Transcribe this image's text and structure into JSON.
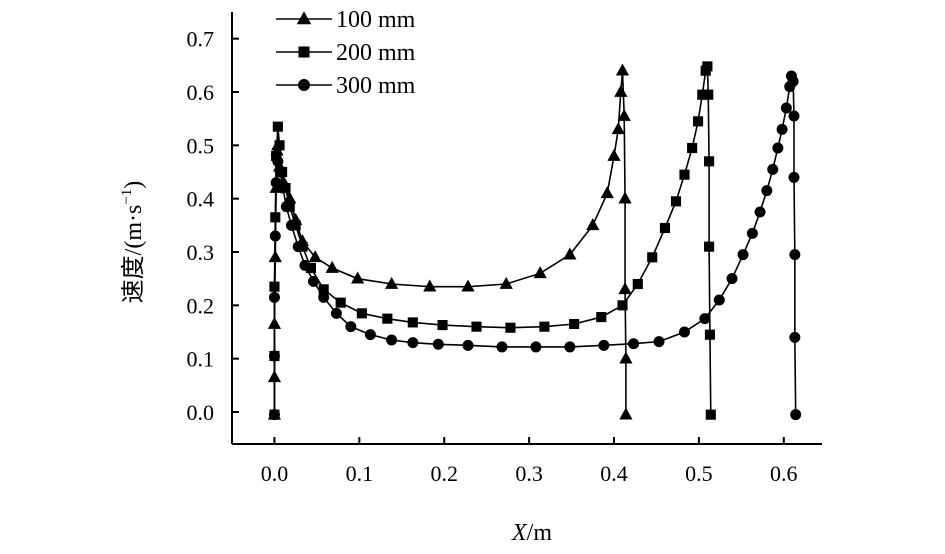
{
  "chart_data": {
    "type": "line",
    "title": "",
    "xlabel": "X/m",
    "xlabel_italic_part": "X",
    "xlabel_rest": "/m",
    "ylabel": "速度/(m·s⁻¹)",
    "ylabel_main": "速度/(m·s",
    "ylabel_sup": "−1",
    "ylabel_close": ")",
    "xlim": [
      -0.05,
      0.645
    ],
    "ylim": [
      -0.06,
      0.75
    ],
    "x_ticks": [
      0.0,
      0.1,
      0.2,
      0.3,
      0.4,
      0.5,
      0.6
    ],
    "x_tick_labels": [
      "0.0",
      "0.1",
      "0.2",
      "0.3",
      "0.4",
      "0.5",
      "0.6"
    ],
    "y_ticks": [
      0.0,
      0.1,
      0.2,
      0.3,
      0.4,
      0.5,
      0.6,
      0.7
    ],
    "y_tick_labels": [
      "0.0",
      "0.1",
      "0.2",
      "0.3",
      "0.4",
      "0.5",
      "0.6",
      "0.7"
    ],
    "grid": false,
    "legend_position": "top-left",
    "series": [
      {
        "name": "100 mm",
        "marker": "triangle",
        "color": "#000000",
        "points": [
          [
            0.0,
            -0.005
          ],
          [
            0.0,
            0.065
          ],
          [
            0.0,
            0.165
          ],
          [
            0.001,
            0.29
          ],
          [
            0.002,
            0.42
          ],
          [
            0.003,
            0.49
          ],
          [
            0.004,
            0.5
          ],
          [
            0.006,
            0.46
          ],
          [
            0.011,
            0.43
          ],
          [
            0.018,
            0.4
          ],
          [
            0.025,
            0.36
          ],
          [
            0.033,
            0.32
          ],
          [
            0.048,
            0.29
          ],
          [
            0.068,
            0.27
          ],
          [
            0.098,
            0.25
          ],
          [
            0.138,
            0.24
          ],
          [
            0.183,
            0.235
          ],
          [
            0.228,
            0.235
          ],
          [
            0.273,
            0.24
          ],
          [
            0.313,
            0.26
          ],
          [
            0.348,
            0.295
          ],
          [
            0.375,
            0.35
          ],
          [
            0.392,
            0.41
          ],
          [
            0.4,
            0.48
          ],
          [
            0.405,
            0.53
          ],
          [
            0.408,
            0.6
          ],
          [
            0.41,
            0.64
          ],
          [
            0.412,
            0.555
          ],
          [
            0.413,
            0.4
          ],
          [
            0.413,
            0.23
          ],
          [
            0.414,
            0.1
          ],
          [
            0.414,
            -0.005
          ]
        ]
      },
      {
        "name": "200 mm",
        "marker": "square",
        "color": "#000000",
        "points": [
          [
            0.0,
            -0.005
          ],
          [
            0.0,
            0.105
          ],
          [
            0.0,
            0.235
          ],
          [
            0.001,
            0.365
          ],
          [
            0.002,
            0.48
          ],
          [
            0.004,
            0.535
          ],
          [
            0.006,
            0.5
          ],
          [
            0.009,
            0.45
          ],
          [
            0.013,
            0.42
          ],
          [
            0.018,
            0.385
          ],
          [
            0.025,
            0.35
          ],
          [
            0.033,
            0.31
          ],
          [
            0.043,
            0.27
          ],
          [
            0.058,
            0.23
          ],
          [
            0.078,
            0.205
          ],
          [
            0.103,
            0.185
          ],
          [
            0.133,
            0.175
          ],
          [
            0.163,
            0.168
          ],
          [
            0.198,
            0.163
          ],
          [
            0.238,
            0.16
          ],
          [
            0.278,
            0.158
          ],
          [
            0.318,
            0.16
          ],
          [
            0.353,
            0.165
          ],
          [
            0.385,
            0.178
          ],
          [
            0.41,
            0.2
          ],
          [
            0.428,
            0.24
          ],
          [
            0.445,
            0.29
          ],
          [
            0.46,
            0.345
          ],
          [
            0.473,
            0.395
          ],
          [
            0.483,
            0.445
          ],
          [
            0.492,
            0.495
          ],
          [
            0.499,
            0.545
          ],
          [
            0.504,
            0.595
          ],
          [
            0.508,
            0.64
          ],
          [
            0.51,
            0.648
          ],
          [
            0.511,
            0.595
          ],
          [
            0.512,
            0.47
          ],
          [
            0.512,
            0.31
          ],
          [
            0.513,
            0.145
          ],
          [
            0.514,
            -0.005
          ]
        ]
      },
      {
        "name": "300 mm",
        "marker": "circle",
        "color": "#000000",
        "points": [
          [
            0.0,
            -0.005
          ],
          [
            0.0,
            0.105
          ],
          [
            0.0,
            0.215
          ],
          [
            0.001,
            0.33
          ],
          [
            0.002,
            0.43
          ],
          [
            0.004,
            0.47
          ],
          [
            0.007,
            0.45
          ],
          [
            0.01,
            0.42
          ],
          [
            0.014,
            0.385
          ],
          [
            0.02,
            0.35
          ],
          [
            0.028,
            0.31
          ],
          [
            0.036,
            0.275
          ],
          [
            0.046,
            0.245
          ],
          [
            0.058,
            0.215
          ],
          [
            0.073,
            0.185
          ],
          [
            0.09,
            0.16
          ],
          [
            0.113,
            0.145
          ],
          [
            0.138,
            0.135
          ],
          [
            0.163,
            0.13
          ],
          [
            0.193,
            0.127
          ],
          [
            0.228,
            0.125
          ],
          [
            0.268,
            0.122
          ],
          [
            0.308,
            0.122
          ],
          [
            0.348,
            0.122
          ],
          [
            0.388,
            0.125
          ],
          [
            0.423,
            0.128
          ],
          [
            0.453,
            0.132
          ],
          [
            0.483,
            0.15
          ],
          [
            0.507,
            0.175
          ],
          [
            0.524,
            0.21
          ],
          [
            0.539,
            0.25
          ],
          [
            0.552,
            0.295
          ],
          [
            0.563,
            0.335
          ],
          [
            0.572,
            0.375
          ],
          [
            0.58,
            0.415
          ],
          [
            0.587,
            0.455
          ],
          [
            0.593,
            0.495
          ],
          [
            0.598,
            0.53
          ],
          [
            0.603,
            0.57
          ],
          [
            0.607,
            0.61
          ],
          [
            0.609,
            0.63
          ],
          [
            0.611,
            0.62
          ],
          [
            0.612,
            0.555
          ],
          [
            0.612,
            0.44
          ],
          [
            0.613,
            0.295
          ],
          [
            0.613,
            0.14
          ],
          [
            0.614,
            -0.005
          ]
        ]
      }
    ]
  }
}
